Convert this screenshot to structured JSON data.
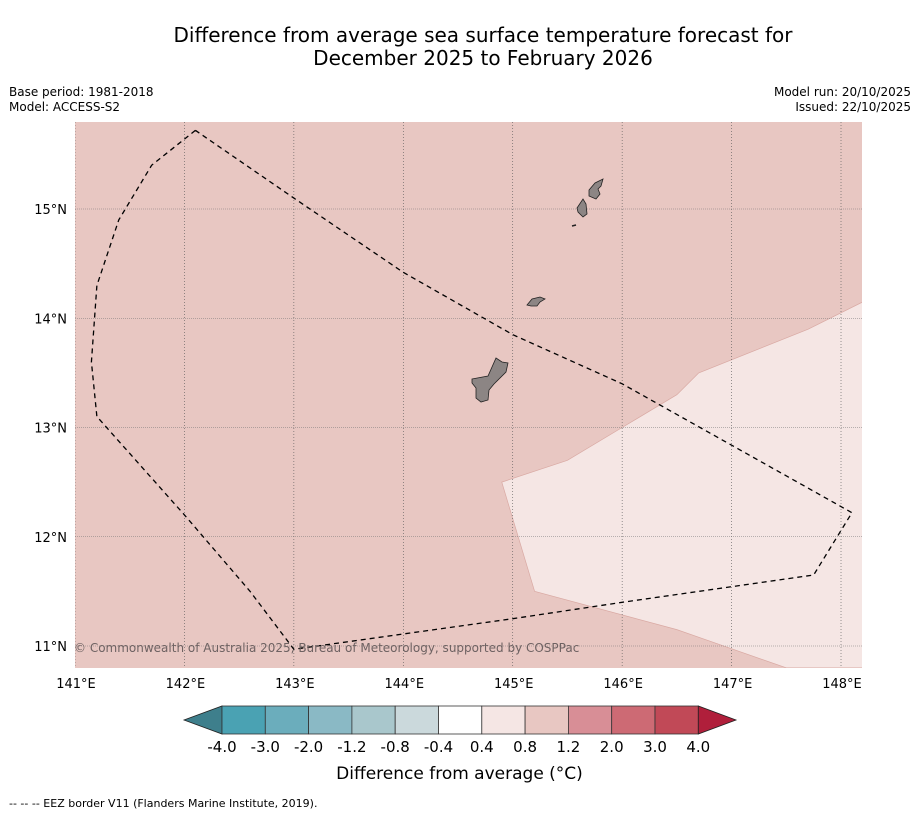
{
  "title_line1": "Difference from average sea surface temperature forecast for",
  "title_line2": "December 2025 to February 2026",
  "base_period": "Base period: 1981-2018",
  "model": "Model: ACCESS-S2",
  "model_run": "Model run: 20/10/2025",
  "issued": "Issued: 22/10/2025",
  "copyright": "© Commonwealth of Australia 2025, Bureau of Meteorology, supported by COSPPac",
  "footnote": "--  --  -- EEZ border V11 (Flanders Marine Institute, 2019).",
  "chart_data": {
    "type": "heatmap",
    "title": "Difference from average sea surface temperature forecast for December 2025 to February 2026",
    "x_ticks": [
      "141°E",
      "142°E",
      "143°E",
      "144°E",
      "145°E",
      "146°E",
      "147°E",
      "148°E"
    ],
    "y_ticks": [
      "15°N",
      "14°N",
      "13°N",
      "12°N",
      "11°N"
    ],
    "xlim": [
      141,
      148.2
    ],
    "ylim": [
      10.8,
      15.8
    ],
    "colorbar": {
      "label": "Difference from average (°C)",
      "ticks": [
        "-4.0",
        "-3.0",
        "-2.0",
        "-1.2",
        "-0.8",
        "-0.4",
        "0.4",
        "0.8",
        "1.2",
        "2.0",
        "3.0",
        "4.0"
      ],
      "colors": [
        "#4aa2b3",
        "#6badbc",
        "#8ab9c5",
        "#a9c7cc",
        "#cbd9dc",
        "#ffffff",
        "#f5e6e4",
        "#e8c7c2",
        "#d88e96",
        "#cd6a74",
        "#c14957"
      ],
      "under_color": "#3e7f8c",
      "over_color": "#b01f3b"
    },
    "regions": [
      {
        "range": "0.8 to 1.2",
        "color": "#e8c7c2",
        "area": "most of domain"
      },
      {
        "range": "0.4 to 0.8",
        "color": "#f5e6e4",
        "area": "south-east",
        "boundary_lonlat": [
          [
            148.2,
            14.15
          ],
          [
            147.7,
            13.9
          ],
          [
            146.7,
            13.5
          ],
          [
            146.5,
            13.3
          ],
          [
            146.0,
            13.0
          ],
          [
            145.5,
            12.7
          ],
          [
            144.9,
            12.5
          ],
          [
            145.2,
            11.5
          ],
          [
            146.5,
            11.15
          ],
          [
            147.5,
            10.8
          ],
          [
            148.2,
            10.8
          ]
        ]
      }
    ],
    "eez_border_lonlat": [
      [
        142.1,
        15.72
      ],
      [
        141.7,
        15.4
      ],
      [
        141.4,
        14.9
      ],
      [
        141.2,
        14.3
      ],
      [
        141.15,
        13.6
      ],
      [
        141.2,
        13.1
      ],
      [
        142.0,
        12.2
      ],
      [
        142.6,
        11.5
      ],
      [
        143.0,
        10.97
      ],
      [
        145.0,
        11.25
      ],
      [
        146.0,
        11.4
      ],
      [
        147.75,
        11.65
      ],
      [
        148.1,
        12.22
      ],
      [
        146.0,
        13.4
      ],
      [
        145.0,
        13.85
      ],
      [
        144.0,
        14.42
      ],
      [
        143.0,
        15.1
      ],
      [
        142.1,
        15.72
      ]
    ]
  }
}
